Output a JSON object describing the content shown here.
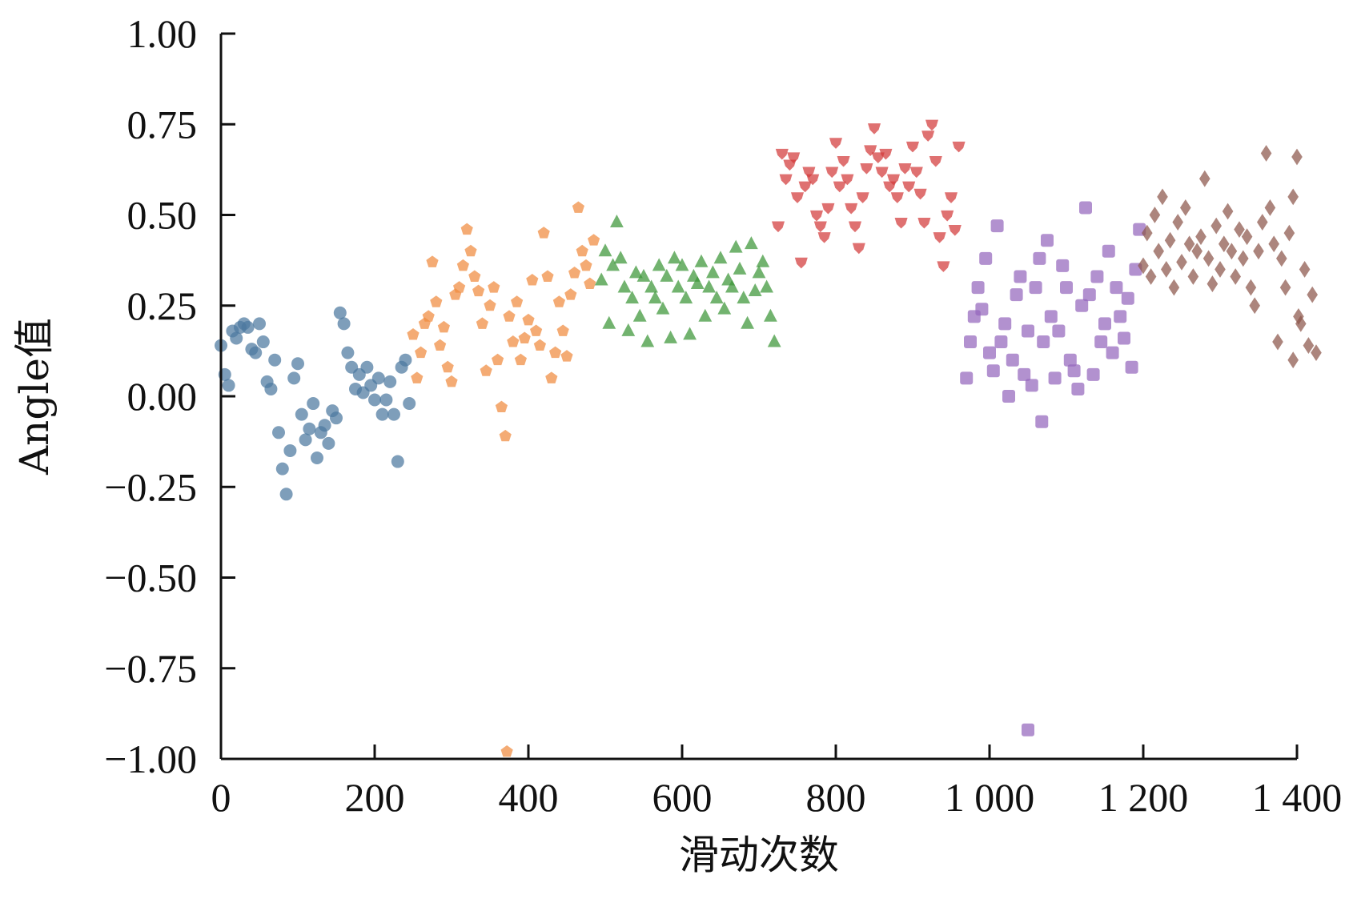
{
  "chart_data": {
    "type": "scatter",
    "title": "",
    "xlabel": "滑动次数",
    "ylabel": "Angle值",
    "xlim": [
      0,
      1400
    ],
    "ylim": [
      -1.0,
      1.0
    ],
    "x_ticks": [
      0,
      200,
      400,
      600,
      800,
      1000,
      1200,
      1400
    ],
    "x_tick_labels": [
      "0",
      "200",
      "400",
      "600",
      "800",
      "1 000",
      "1 200",
      "1 400"
    ],
    "y_ticks": [
      1.0,
      0.75,
      0.5,
      0.25,
      0.0,
      -0.25,
      -0.5,
      -0.75,
      -1.0
    ],
    "y_tick_labels": [
      "1.00",
      "0.75",
      "0.50",
      "0.25",
      "0.00",
      "−0.25",
      "−0.50",
      "−0.75",
      "−1.00"
    ],
    "grid": false,
    "legend": "none",
    "series": [
      {
        "color": "#4c78a0",
        "marker": "circle",
        "points": [
          [
            0,
            0.14
          ],
          [
            5,
            0.06
          ],
          [
            10,
            0.03
          ],
          [
            15,
            0.18
          ],
          [
            20,
            0.16
          ],
          [
            25,
            0.19
          ],
          [
            30,
            0.2
          ],
          [
            35,
            0.19
          ],
          [
            40,
            0.13
          ],
          [
            45,
            0.12
          ],
          [
            50,
            0.2
          ],
          [
            55,
            0.15
          ],
          [
            60,
            0.04
          ],
          [
            65,
            0.02
          ],
          [
            70,
            0.1
          ],
          [
            75,
            -0.1
          ],
          [
            80,
            -0.2
          ],
          [
            85,
            -0.27
          ],
          [
            90,
            -0.15
          ],
          [
            95,
            0.05
          ],
          [
            100,
            0.09
          ],
          [
            105,
            -0.05
          ],
          [
            110,
            -0.12
          ],
          [
            115,
            -0.09
          ],
          [
            120,
            -0.02
          ],
          [
            125,
            -0.17
          ],
          [
            130,
            -0.1
          ],
          [
            135,
            -0.08
          ],
          [
            140,
            -0.13
          ],
          [
            145,
            -0.04
          ],
          [
            150,
            -0.06
          ],
          [
            155,
            0.23
          ],
          [
            160,
            0.2
          ],
          [
            165,
            0.12
          ],
          [
            170,
            0.08
          ],
          [
            175,
            0.02
          ],
          [
            180,
            0.06
          ],
          [
            185,
            0.01
          ],
          [
            190,
            0.08
          ],
          [
            195,
            0.03
          ],
          [
            200,
            -0.01
          ],
          [
            205,
            0.05
          ],
          [
            210,
            -0.05
          ],
          [
            215,
            -0.01
          ],
          [
            220,
            0.04
          ],
          [
            225,
            -0.05
          ],
          [
            230,
            -0.18
          ],
          [
            235,
            0.08
          ],
          [
            240,
            0.1
          ],
          [
            245,
            -0.02
          ]
        ]
      },
      {
        "color": "#f08a3e",
        "marker": "pentagon",
        "points": [
          [
            250,
            0.17
          ],
          [
            255,
            0.05
          ],
          [
            260,
            0.12
          ],
          [
            265,
            0.2
          ],
          [
            270,
            0.22
          ],
          [
            275,
            0.37
          ],
          [
            280,
            0.26
          ],
          [
            285,
            0.14
          ],
          [
            290,
            0.19
          ],
          [
            295,
            0.08
          ],
          [
            300,
            0.04
          ],
          [
            305,
            0.28
          ],
          [
            310,
            0.3
          ],
          [
            315,
            0.36
          ],
          [
            320,
            0.46
          ],
          [
            325,
            0.4
          ],
          [
            330,
            0.33
          ],
          [
            335,
            0.29
          ],
          [
            340,
            0.2
          ],
          [
            345,
            0.07
          ],
          [
            350,
            0.25
          ],
          [
            355,
            0.3
          ],
          [
            360,
            0.1
          ],
          [
            365,
            -0.03
          ],
          [
            370,
            -0.11
          ],
          [
            375,
            0.22
          ],
          [
            380,
            0.15
          ],
          [
            385,
            0.26
          ],
          [
            390,
            0.1
          ],
          [
            395,
            0.16
          ],
          [
            400,
            0.21
          ],
          [
            405,
            0.32
          ],
          [
            410,
            0.18
          ],
          [
            415,
            0.14
          ],
          [
            420,
            0.45
          ],
          [
            425,
            0.33
          ],
          [
            430,
            0.05
          ],
          [
            435,
            0.12
          ],
          [
            440,
            0.26
          ],
          [
            445,
            0.18
          ],
          [
            450,
            0.11
          ],
          [
            455,
            0.28
          ],
          [
            460,
            0.34
          ],
          [
            465,
            0.52
          ],
          [
            470,
            0.4
          ],
          [
            475,
            0.36
          ],
          [
            480,
            0.31
          ],
          [
            485,
            0.43
          ],
          [
            372,
            -0.98
          ]
        ]
      },
      {
        "color": "#3c9637",
        "marker": "triangle",
        "points": [
          [
            495,
            0.32
          ],
          [
            500,
            0.4
          ],
          [
            505,
            0.2
          ],
          [
            510,
            0.36
          ],
          [
            515,
            0.48
          ],
          [
            520,
            0.38
          ],
          [
            525,
            0.3
          ],
          [
            530,
            0.18
          ],
          [
            535,
            0.27
          ],
          [
            540,
            0.34
          ],
          [
            545,
            0.22
          ],
          [
            550,
            0.33
          ],
          [
            555,
            0.15
          ],
          [
            560,
            0.3
          ],
          [
            565,
            0.27
          ],
          [
            570,
            0.36
          ],
          [
            575,
            0.24
          ],
          [
            580,
            0.33
          ],
          [
            585,
            0.16
          ],
          [
            590,
            0.38
          ],
          [
            595,
            0.3
          ],
          [
            600,
            0.36
          ],
          [
            605,
            0.27
          ],
          [
            610,
            0.17
          ],
          [
            615,
            0.33
          ],
          [
            620,
            0.31
          ],
          [
            625,
            0.37
          ],
          [
            630,
            0.22
          ],
          [
            635,
            0.3
          ],
          [
            640,
            0.34
          ],
          [
            645,
            0.27
          ],
          [
            650,
            0.38
          ],
          [
            655,
            0.24
          ],
          [
            660,
            0.32
          ],
          [
            665,
            0.3
          ],
          [
            670,
            0.41
          ],
          [
            675,
            0.35
          ],
          [
            680,
            0.27
          ],
          [
            685,
            0.2
          ],
          [
            690,
            0.42
          ],
          [
            695,
            0.29
          ],
          [
            700,
            0.34
          ],
          [
            705,
            0.37
          ],
          [
            710,
            0.3
          ],
          [
            715,
            0.22
          ],
          [
            720,
            0.15
          ]
        ]
      },
      {
        "color": "#d23a3a",
        "marker": "shield",
        "points": [
          [
            725,
            0.47
          ],
          [
            730,
            0.67
          ],
          [
            735,
            0.6
          ],
          [
            740,
            0.64
          ],
          [
            745,
            0.66
          ],
          [
            750,
            0.55
          ],
          [
            755,
            0.37
          ],
          [
            760,
            0.58
          ],
          [
            765,
            0.62
          ],
          [
            770,
            0.6
          ],
          [
            775,
            0.5
          ],
          [
            780,
            0.47
          ],
          [
            785,
            0.44
          ],
          [
            790,
            0.52
          ],
          [
            795,
            0.62
          ],
          [
            800,
            0.7
          ],
          [
            805,
            0.58
          ],
          [
            810,
            0.65
          ],
          [
            815,
            0.6
          ],
          [
            820,
            0.52
          ],
          [
            825,
            0.47
          ],
          [
            830,
            0.41
          ],
          [
            835,
            0.55
          ],
          [
            840,
            0.63
          ],
          [
            845,
            0.68
          ],
          [
            850,
            0.74
          ],
          [
            855,
            0.66
          ],
          [
            860,
            0.62
          ],
          [
            865,
            0.67
          ],
          [
            870,
            0.58
          ],
          [
            875,
            0.6
          ],
          [
            880,
            0.55
          ],
          [
            885,
            0.48
          ],
          [
            890,
            0.63
          ],
          [
            895,
            0.58
          ],
          [
            900,
            0.69
          ],
          [
            905,
            0.62
          ],
          [
            910,
            0.56
          ],
          [
            915,
            0.48
          ],
          [
            920,
            0.72
          ],
          [
            925,
            0.75
          ],
          [
            930,
            0.65
          ],
          [
            935,
            0.44
          ],
          [
            940,
            0.36
          ],
          [
            945,
            0.5
          ],
          [
            950,
            0.55
          ],
          [
            955,
            0.46
          ],
          [
            960,
            0.69
          ]
        ]
      },
      {
        "color": "#9467bd",
        "marker": "square",
        "points": [
          [
            970,
            0.05
          ],
          [
            975,
            0.15
          ],
          [
            980,
            0.22
          ],
          [
            985,
            0.3
          ],
          [
            990,
            0.24
          ],
          [
            995,
            0.38
          ],
          [
            1000,
            0.12
          ],
          [
            1005,
            0.07
          ],
          [
            1010,
            0.47
          ],
          [
            1015,
            0.15
          ],
          [
            1020,
            0.2
          ],
          [
            1025,
            0.0
          ],
          [
            1030,
            0.1
          ],
          [
            1035,
            0.28
          ],
          [
            1040,
            0.33
          ],
          [
            1045,
            0.06
          ],
          [
            1050,
            0.18
          ],
          [
            1055,
            0.03
          ],
          [
            1060,
            0.3
          ],
          [
            1065,
            0.38
          ],
          [
            1070,
            0.15
          ],
          [
            1075,
            0.43
          ],
          [
            1080,
            0.22
          ],
          [
            1085,
            0.05
          ],
          [
            1090,
            0.18
          ],
          [
            1095,
            0.36
          ],
          [
            1100,
            0.3
          ],
          [
            1105,
            0.1
          ],
          [
            1110,
            0.07
          ],
          [
            1115,
            0.02
          ],
          [
            1120,
            0.25
          ],
          [
            1125,
            0.52
          ],
          [
            1130,
            0.28
          ],
          [
            1135,
            0.06
          ],
          [
            1140,
            0.33
          ],
          [
            1145,
            0.15
          ],
          [
            1150,
            0.2
          ],
          [
            1155,
            0.4
          ],
          [
            1160,
            0.12
          ],
          [
            1165,
            0.3
          ],
          [
            1170,
            0.22
          ],
          [
            1175,
            0.16
          ],
          [
            1180,
            0.27
          ],
          [
            1185,
            0.08
          ],
          [
            1190,
            0.35
          ],
          [
            1195,
            0.46
          ],
          [
            1050,
            -0.92
          ],
          [
            1068,
            -0.07
          ]
        ]
      },
      {
        "color": "#8c564b",
        "marker": "diamond",
        "points": [
          [
            1200,
            0.36
          ],
          [
            1205,
            0.45
          ],
          [
            1210,
            0.33
          ],
          [
            1215,
            0.5
          ],
          [
            1220,
            0.4
          ],
          [
            1225,
            0.55
          ],
          [
            1230,
            0.35
          ],
          [
            1235,
            0.43
          ],
          [
            1240,
            0.3
          ],
          [
            1245,
            0.48
          ],
          [
            1250,
            0.37
          ],
          [
            1255,
            0.52
          ],
          [
            1260,
            0.42
          ],
          [
            1265,
            0.33
          ],
          [
            1270,
            0.4
          ],
          [
            1275,
            0.44
          ],
          [
            1280,
            0.6
          ],
          [
            1285,
            0.38
          ],
          [
            1290,
            0.31
          ],
          [
            1295,
            0.47
          ],
          [
            1300,
            0.35
          ],
          [
            1305,
            0.42
          ],
          [
            1310,
            0.51
          ],
          [
            1315,
            0.4
          ],
          [
            1320,
            0.33
          ],
          [
            1325,
            0.46
          ],
          [
            1330,
            0.38
          ],
          [
            1335,
            0.44
          ],
          [
            1340,
            0.3
          ],
          [
            1345,
            0.25
          ],
          [
            1350,
            0.4
          ],
          [
            1355,
            0.48
          ],
          [
            1360,
            0.67
          ],
          [
            1365,
            0.52
          ],
          [
            1370,
            0.42
          ],
          [
            1375,
            0.15
          ],
          [
            1380,
            0.38
          ],
          [
            1385,
            0.3
          ],
          [
            1390,
            0.45
          ],
          [
            1395,
            0.55
          ],
          [
            1400,
            0.66
          ],
          [
            1405,
            0.2
          ],
          [
            1410,
            0.35
          ],
          [
            1415,
            0.14
          ],
          [
            1420,
            0.28
          ],
          [
            1425,
            0.12
          ],
          [
            1395,
            0.1
          ],
          [
            1402,
            0.22
          ]
        ]
      }
    ]
  }
}
